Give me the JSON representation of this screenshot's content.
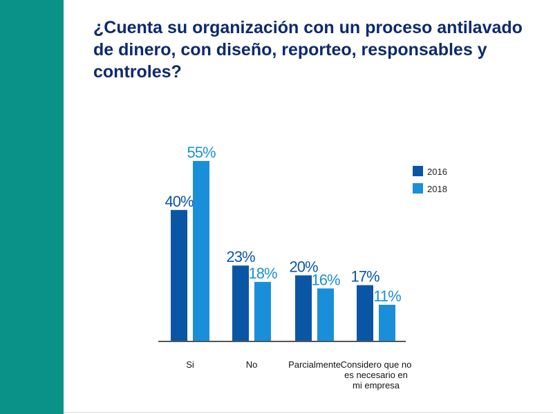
{
  "chart_data": {
    "type": "bar",
    "title": "¿Cuenta su organización con un proceso antilavado de dinero, con diseño, reporteo, responsables y controles?",
    "categories": [
      [
        "Si"
      ],
      [
        "No"
      ],
      [
        "Parcialmente"
      ],
      [
        "Considero que no",
        "es necesario en",
        "mi empresa"
      ]
    ],
    "series": [
      {
        "name": "2016",
        "values": [
          40,
          23,
          20,
          17
        ],
        "labels": [
          "40%",
          "23%",
          "20%",
          "17%"
        ],
        "color": "#0a56a4"
      },
      {
        "name": "2018",
        "values": [
          55,
          18,
          16,
          11
        ],
        "labels": [
          "55%",
          "18%",
          "16%",
          "11%"
        ],
        "color": "#1a8fd9"
      }
    ],
    "ylim": [
      0,
      60
    ],
    "xlabel": "",
    "ylabel": "",
    "legend_position": "top-right",
    "grid": false
  },
  "colors": {
    "sidebar": "#0a9188",
    "title": "#0d2a6b",
    "axis": "#555555"
  }
}
